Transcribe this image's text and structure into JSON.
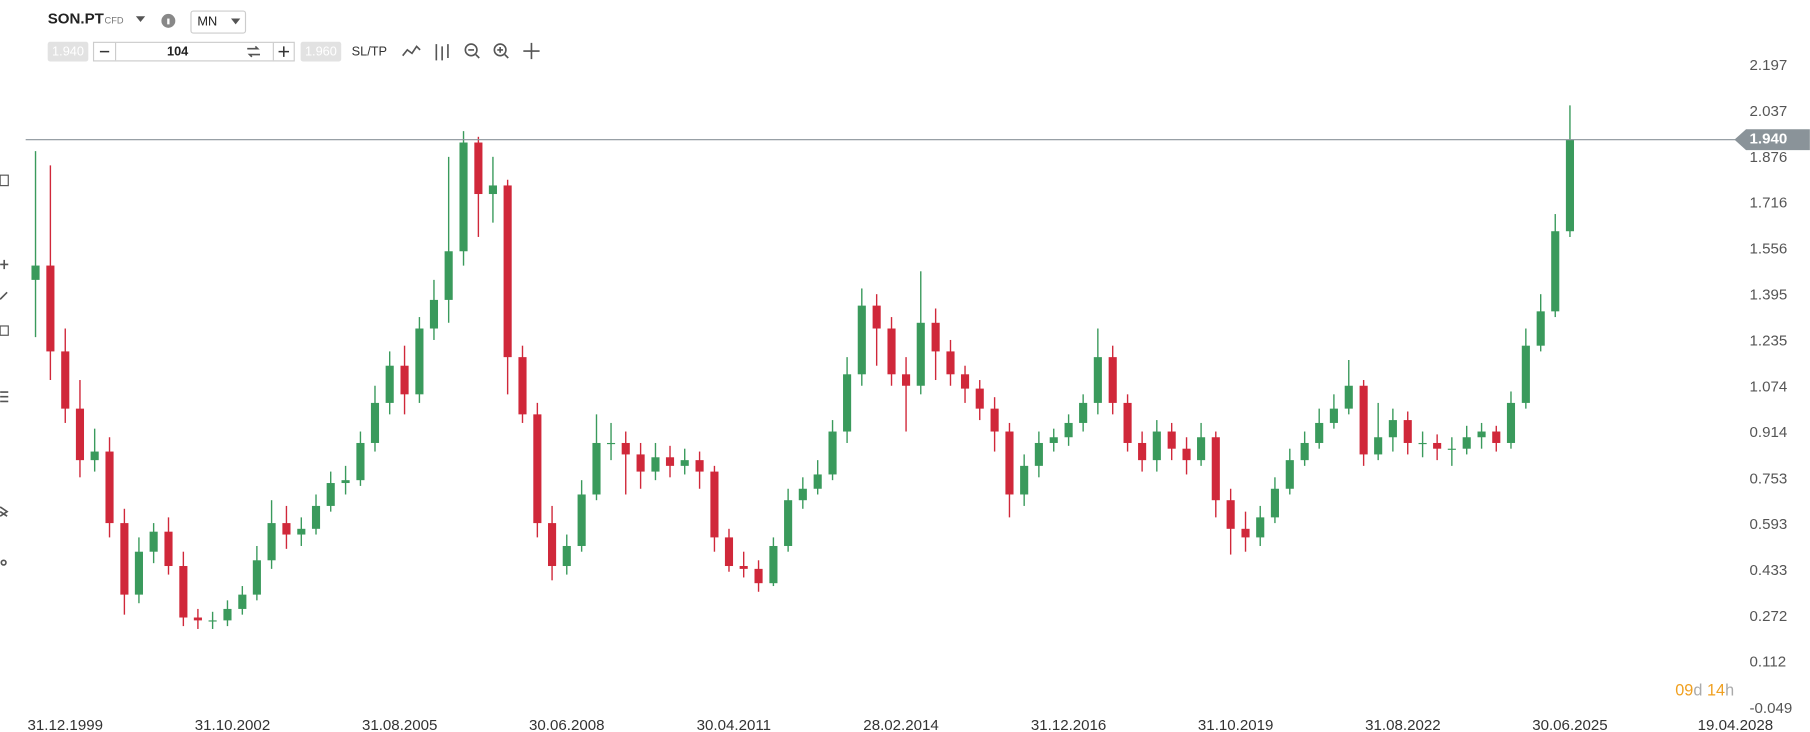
{
  "toolbar": {
    "symbol": "SON.PT",
    "kind": "CFD",
    "interval": "MN",
    "sell": "1.940",
    "volume": "104",
    "buy": "1.960",
    "sltp": "SL/TP"
  },
  "countdown": [
    "09",
    "d",
    "14",
    "h"
  ],
  "chart_data": {
    "type": "candlestick",
    "up_color": "#3a9a5c",
    "down_color": "#d0283a",
    "x": [
      "30.06.1999",
      "30.09.1999",
      "31.12.1999",
      "31.03.2000",
      "30.06.2000",
      "30.09.2000",
      "31.12.2000",
      "31.03.2001",
      "30.06.2001",
      "30.09.2001",
      "31.12.2001",
      "31.03.2002",
      "30.06.2002",
      "30.09.2002",
      "31.12.2002",
      "31.03.2003",
      "30.06.2003",
      "30.09.2003",
      "31.12.2003",
      "31.03.2004",
      "30.06.2004",
      "30.09.2004",
      "31.12.2004",
      "31.03.2005",
      "30.06.2005",
      "30.09.2005",
      "31.12.2005",
      "31.03.2006",
      "30.06.2006",
      "30.09.2006",
      "31.12.2006",
      "31.03.2007",
      "30.06.2007",
      "30.09.2007",
      "31.12.2007",
      "31.03.2008",
      "30.06.2008",
      "30.09.2008",
      "31.12.2008",
      "31.03.2009",
      "30.06.2009",
      "30.09.2009",
      "31.12.2009",
      "31.03.2010",
      "30.06.2010",
      "30.09.2010",
      "31.12.2010",
      "31.03.2011",
      "30.06.2011",
      "30.09.2011",
      "31.12.2011",
      "31.03.2012",
      "30.06.2012",
      "30.09.2012",
      "31.12.2012",
      "31.03.2013",
      "30.06.2013",
      "30.09.2013",
      "31.12.2013",
      "31.03.2014",
      "30.06.2014",
      "30.09.2014",
      "31.12.2014",
      "31.03.2015",
      "30.06.2015",
      "30.09.2015",
      "31.12.2015",
      "31.03.2016",
      "30.06.2016",
      "30.09.2016",
      "31.12.2016",
      "31.03.2017",
      "30.06.2017",
      "30.09.2017",
      "31.12.2017",
      "31.03.2018",
      "30.06.2018",
      "30.09.2018",
      "31.12.2018",
      "31.03.2019",
      "30.06.2019",
      "30.09.2019",
      "31.12.2019",
      "31.03.2020",
      "30.06.2020",
      "30.09.2020",
      "31.12.2020",
      "31.03.2021",
      "30.06.2021",
      "30.09.2021",
      "31.12.2021",
      "31.03.2022",
      "30.06.2022",
      "30.09.2022",
      "31.12.2022",
      "31.03.2023",
      "30.06.2023",
      "30.09.2023",
      "31.12.2023",
      "31.03.2024",
      "30.06.2024",
      "30.09.2024",
      "31.12.2024",
      "31.03.2025",
      "30.06.2025"
    ],
    "open": [
      1.45,
      1.5,
      1.2,
      1.0,
      0.82,
      0.85,
      0.6,
      0.35,
      0.5,
      0.57,
      0.45,
      0.27,
      0.26,
      0.26,
      0.3,
      0.35,
      0.47,
      0.6,
      0.56,
      0.58,
      0.66,
      0.74,
      0.75,
      0.88,
      1.02,
      1.15,
      1.05,
      1.28,
      1.38,
      1.55,
      1.93,
      1.75,
      1.78,
      1.18,
      0.98,
      0.6,
      0.45,
      0.52,
      0.7,
      0.88,
      0.88,
      0.84,
      0.78,
      0.83,
      0.8,
      0.82,
      0.78,
      0.55,
      0.45,
      0.44,
      0.39,
      0.52,
      0.68,
      0.72,
      0.77,
      0.92,
      1.12,
      1.36,
      1.28,
      1.12,
      1.08,
      1.3,
      1.2,
      1.12,
      1.07,
      1.0,
      0.92,
      0.7,
      0.8,
      0.88,
      0.9,
      0.95,
      1.02,
      1.18,
      1.02,
      0.88,
      0.82,
      0.92,
      0.86,
      0.82,
      0.9,
      0.68,
      0.58,
      0.55,
      0.62,
      0.72,
      0.82,
      0.88,
      0.95,
      1.0,
      1.08,
      0.84,
      0.9,
      0.96,
      0.88,
      0.88,
      0.86,
      0.86,
      0.9,
      0.92,
      0.88,
      1.02,
      1.22,
      1.34,
      1.62
    ],
    "high": [
      1.9,
      1.85,
      1.28,
      1.1,
      0.93,
      0.9,
      0.65,
      0.55,
      0.6,
      0.62,
      0.5,
      0.3,
      0.29,
      0.33,
      0.38,
      0.52,
      0.68,
      0.66,
      0.62,
      0.7,
      0.78,
      0.8,
      0.92,
      1.08,
      1.2,
      1.22,
      1.32,
      1.45,
      1.88,
      1.97,
      1.95,
      1.88,
      1.8,
      1.22,
      1.02,
      0.66,
      0.56,
      0.75,
      0.98,
      0.95,
      0.92,
      0.88,
      0.88,
      0.87,
      0.86,
      0.85,
      0.8,
      0.58,
      0.5,
      0.47,
      0.55,
      0.72,
      0.76,
      0.82,
      0.96,
      1.18,
      1.42,
      1.4,
      1.32,
      1.18,
      1.48,
      1.35,
      1.24,
      1.15,
      1.1,
      1.04,
      0.95,
      0.84,
      0.92,
      0.93,
      0.98,
      1.05,
      1.28,
      1.22,
      1.05,
      0.92,
      0.96,
      0.95,
      0.9,
      0.95,
      0.92,
      0.72,
      0.64,
      0.66,
      0.76,
      0.86,
      0.92,
      1.0,
      1.05,
      1.17,
      1.1,
      1.02,
      1.0,
      0.99,
      0.92,
      0.91,
      0.9,
      0.94,
      0.95,
      0.94,
      1.06,
      1.28,
      1.4,
      1.68,
      2.06
    ],
    "low": [
      1.25,
      1.1,
      0.95,
      0.76,
      0.78,
      0.55,
      0.28,
      0.32,
      0.46,
      0.42,
      0.24,
      0.23,
      0.23,
      0.24,
      0.28,
      0.33,
      0.44,
      0.51,
      0.52,
      0.56,
      0.64,
      0.7,
      0.73,
      0.85,
      0.98,
      0.98,
      1.02,
      1.24,
      1.3,
      1.5,
      1.6,
      1.65,
      1.05,
      0.95,
      0.55,
      0.4,
      0.42,
      0.5,
      0.68,
      0.82,
      0.7,
      0.72,
      0.75,
      0.76,
      0.77,
      0.72,
      0.5,
      0.43,
      0.41,
      0.36,
      0.38,
      0.5,
      0.65,
      0.7,
      0.75,
      0.88,
      1.08,
      1.15,
      1.08,
      0.92,
      1.05,
      1.1,
      1.08,
      1.02,
      0.96,
      0.85,
      0.62,
      0.66,
      0.76,
      0.85,
      0.87,
      0.92,
      0.98,
      0.98,
      0.85,
      0.78,
      0.78,
      0.82,
      0.77,
      0.8,
      0.62,
      0.49,
      0.5,
      0.52,
      0.6,
      0.7,
      0.8,
      0.86,
      0.93,
      0.98,
      0.8,
      0.82,
      0.85,
      0.84,
      0.83,
      0.82,
      0.8,
      0.84,
      0.86,
      0.85,
      0.86,
      1.0,
      1.2,
      1.32,
      1.6
    ],
    "close": [
      1.5,
      1.2,
      1.0,
      0.82,
      0.85,
      0.6,
      0.35,
      0.5,
      0.57,
      0.45,
      0.27,
      0.26,
      0.26,
      0.3,
      0.35,
      0.47,
      0.6,
      0.56,
      0.58,
      0.66,
      0.74,
      0.75,
      0.88,
      1.02,
      1.15,
      1.05,
      1.28,
      1.38,
      1.55,
      1.93,
      1.75,
      1.78,
      1.18,
      0.98,
      0.6,
      0.45,
      0.52,
      0.7,
      0.88,
      0.88,
      0.84,
      0.78,
      0.83,
      0.8,
      0.82,
      0.78,
      0.55,
      0.45,
      0.44,
      0.39,
      0.52,
      0.68,
      0.72,
      0.77,
      0.92,
      1.12,
      1.36,
      1.28,
      1.12,
      1.08,
      1.3,
      1.2,
      1.12,
      1.07,
      1.0,
      0.92,
      0.7,
      0.8,
      0.88,
      0.9,
      0.95,
      1.02,
      1.18,
      1.02,
      0.88,
      0.82,
      0.92,
      0.86,
      0.82,
      0.9,
      0.68,
      0.58,
      0.55,
      0.62,
      0.72,
      0.82,
      0.88,
      0.95,
      1.0,
      1.08,
      0.84,
      0.9,
      0.96,
      0.88,
      0.88,
      0.86,
      0.86,
      0.9,
      0.92,
      0.88,
      1.02,
      1.22,
      1.34,
      1.62,
      1.94
    ],
    "xlim": [
      "30.04.1999",
      "19.05.2028"
    ],
    "xticks": [
      "31.12.1999",
      "31.10.2002",
      "31.08.2005",
      "30.06.2008",
      "30.04.2011",
      "28.02.2014",
      "31.12.2016",
      "31.10.2019",
      "31.08.2022",
      "30.06.2025",
      "19.04.2028"
    ],
    "ylim": [
      -0.049,
      2.197
    ],
    "yticks": [
      -0.049,
      0.112,
      0.272,
      0.433,
      0.593,
      0.753,
      0.914,
      1.074,
      1.235,
      1.395,
      1.556,
      1.716,
      1.876,
      2.037,
      2.197
    ],
    "price_line": {
      "value": 1.94,
      "label": "1.940"
    },
    "price_line_color": "#8a9399"
  }
}
